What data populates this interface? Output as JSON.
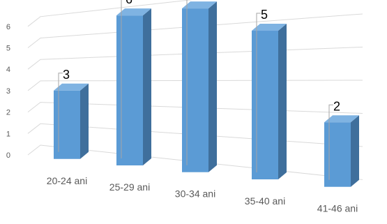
{
  "chart_data": {
    "type": "bar",
    "style": "3d-column",
    "title": "",
    "xlabel": "",
    "ylabel": "",
    "categories": [
      "20-24 ani",
      "25-29 ani",
      "30-34 ani",
      "35-40 ani",
      "41-46 ani"
    ],
    "values": [
      3,
      6,
      6,
      5,
      2
    ],
    "ylim": [
      0,
      6
    ],
    "yticks": [
      "0",
      "1",
      "2",
      "3",
      "4",
      "5",
      "6"
    ],
    "grid": true,
    "legend": "none",
    "bar_color": "#5B9BD5",
    "bar_side_color": "#3F6F9C",
    "bar_top_color": "#7FB3E2"
  }
}
